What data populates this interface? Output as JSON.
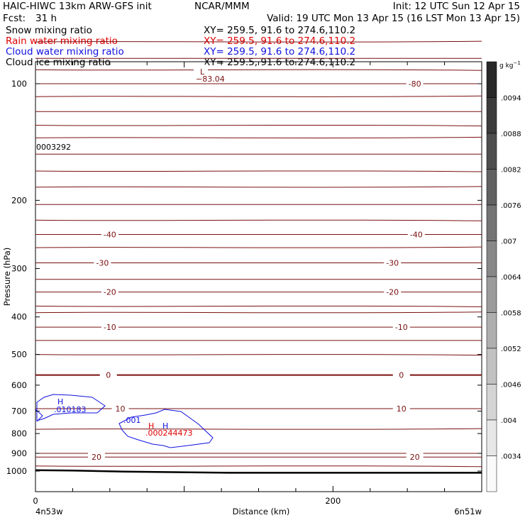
{
  "header": {
    "title": "HAIC-HIWC 13km ARW-GFS init",
    "org": "NCAR/MMM",
    "init": "Init: 12 UTC Sun 12 Apr 15",
    "fcst_label": "Fcst:",
    "fcst_value": "31 h",
    "valid": "Valid: 19 UTC Mon 13 Apr 15 (16 LST Mon 13 Apr 15)"
  },
  "legend": [
    {
      "name": "Snow mixing ratio",
      "xy": "XY=  259.5, 91.6 to 274.6,110.2",
      "color": "#000000"
    },
    {
      "name": "Rain water mixing ratio",
      "xy": "XY=  259.5, 91.6 to 274.6,110.2",
      "color": "#e00000"
    },
    {
      "name": "Cloud water mixing ratio",
      "xy": "XY=  259.5, 91.6 to 274.6,110.2",
      "color": "#1010e0"
    },
    {
      "name": "Cloud ice mixing ratio",
      "xy": "XY=  259.5, 91.6 to 274.6,110.2",
      "color": "#000000"
    }
  ],
  "axes": {
    "ylabel": "Pressure (hPa)",
    "xlabel": "Distance (km)",
    "left_endpoint": "4n53w",
    "right_endpoint": "6n51w"
  },
  "colorbar": {
    "unit_label": "g kg",
    "unit_exp": "−1",
    "ticks": [
      ".0094",
      ".0088",
      ".0082",
      ".0076",
      ".007",
      ".0064",
      ".0058",
      ".0052",
      ".0046",
      ".004",
      ".0034"
    ]
  },
  "annotations": {
    "low_marker": "L",
    "low_value": "−83.04",
    "snow_value": "0003292",
    "cloud_high_marker": "H",
    "cloud_high_value": ".010183",
    "cloud_contour_label": ".001",
    "rain_high_marker": "H",
    "rain_cloud_high_marker": "H",
    "rain_high_value": ".000244473"
  },
  "colors": {
    "temperature": "#7a1010",
    "cloud_water": "#1010e0",
    "rain_water": "#e00000",
    "terrain": "#000000"
  },
  "chart_data": {
    "type": "line",
    "x": {
      "min": 0,
      "max": 300,
      "ticks": [
        0,
        200
      ]
    },
    "y": {
      "scale": "log",
      "min": 1050,
      "max": 70,
      "ticks": [
        100,
        200,
        300,
        400,
        500,
        600,
        700,
        800,
        900,
        1000
      ]
    },
    "temperature_contours": [
      {
        "level": "-80",
        "label_x": [
          255
        ],
        "pressure": 100
      },
      {
        "level": "-40",
        "label_x": [
          50,
          256
        ],
        "pressure": 245
      },
      {
        "level": "-30",
        "label_x": [
          45,
          240
        ],
        "pressure": 290
      },
      {
        "level": "-20",
        "label_x": [
          50,
          240
        ],
        "pressure": 345
      },
      {
        "level": "-10",
        "label_x": [
          50,
          246
        ],
        "pressure": 425
      },
      {
        "level": "0",
        "label_x": [
          49,
          246
        ],
        "pressure": 565
      },
      {
        "level": "10",
        "label_x": [
          57,
          246
        ],
        "pressure": 690
      },
      {
        "level": "20",
        "label_x": [
          41,
          255
        ],
        "pressure": 920
      }
    ],
    "terrain_pressure": [
      {
        "x": 0,
        "p": 995
      },
      {
        "x": 25,
        "p": 997
      },
      {
        "x": 60,
        "p": 1003
      },
      {
        "x": 130,
        "p": 1010
      },
      {
        "x": 300,
        "p": 1010
      }
    ],
    "low_center": {
      "x": 117,
      "pressure": 72,
      "value": -83.04
    }
  }
}
